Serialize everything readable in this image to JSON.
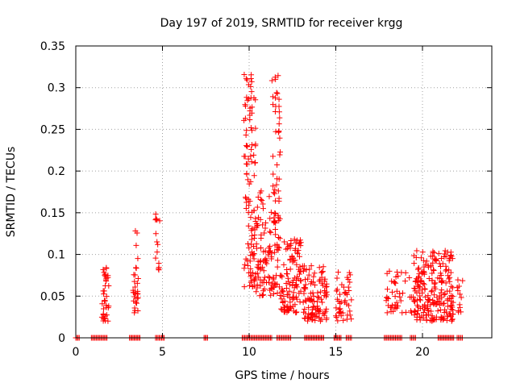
{
  "chart_data": {
    "type": "scatter",
    "title": "Day 197 of 2019, SRMTID for receiver krgg",
    "xlabel": "GPS time / hours",
    "ylabel": "SRMTID / TECUs",
    "xlim": [
      0,
      24
    ],
    "ylim": [
      0,
      0.35
    ],
    "x_ticks": [
      0,
      5,
      10,
      15,
      20
    ],
    "x_tick_labels": [
      "0",
      "5",
      "10",
      "15",
      "20"
    ],
    "y_ticks": [
      0,
      0.05,
      0.1,
      0.15,
      0.2,
      0.25,
      0.3,
      0.35
    ],
    "y_tick_labels": [
      "0",
      "0.05",
      "0.1",
      "0.15",
      "0.2",
      "0.25",
      "0.3",
      "0.35"
    ],
    "grid": true,
    "marker": "+",
    "series_color": "#ff0000",
    "series": [
      {
        "name": "SRMTID",
        "clusters": [
          {
            "x": [
              1.5,
              1.9
            ],
            "y": [
              0.02,
              0.085
            ],
            "n": 40
          },
          {
            "x": [
              3.3,
              3.6
            ],
            "y": [
              0.03,
              0.14
            ],
            "n": 30
          },
          {
            "x": [
              4.6,
              4.85
            ],
            "y": [
              0.08,
              0.155
            ],
            "n": 14
          },
          {
            "x": [
              9.7,
              10.4
            ],
            "y": [
              0.06,
              0.32
            ],
            "n": 110
          },
          {
            "x": [
              10.4,
              11.3
            ],
            "y": [
              0.05,
              0.18
            ],
            "n": 80
          },
          {
            "x": [
              11.3,
              11.8
            ],
            "y": [
              0.05,
              0.325
            ],
            "n": 80
          },
          {
            "x": [
              11.8,
              13.0
            ],
            "y": [
              0.03,
              0.12
            ],
            "n": 110
          },
          {
            "x": [
              13.0,
              14.5
            ],
            "y": [
              0.02,
              0.09
            ],
            "n": 110
          },
          {
            "x": [
              15.0,
              15.9
            ],
            "y": [
              0.02,
              0.08
            ],
            "n": 45
          },
          {
            "x": [
              17.9,
              19.5
            ],
            "y": [
              0.03,
              0.08
            ],
            "n": 45
          },
          {
            "x": [
              19.5,
              21.8
            ],
            "y": [
              0.02,
              0.105
            ],
            "n": 230
          },
          {
            "x": [
              22.0,
              22.4
            ],
            "y": [
              0.03,
              0.07
            ],
            "n": 12
          }
        ],
        "zero_runs": [
          [
            0.0,
            0.2
          ],
          [
            0.9,
            1.8
          ],
          [
            3.1,
            3.7
          ],
          [
            4.6,
            5.1
          ],
          [
            7.4,
            7.6
          ],
          [
            9.6,
            11.3
          ],
          [
            11.6,
            12.4
          ],
          [
            13.2,
            14.3
          ],
          [
            14.9,
            15.3
          ],
          [
            15.6,
            15.9
          ],
          [
            17.8,
            18.8
          ],
          [
            19.3,
            19.6
          ],
          [
            20.9,
            21.8
          ],
          [
            22.0,
            22.3
          ]
        ]
      }
    ]
  }
}
